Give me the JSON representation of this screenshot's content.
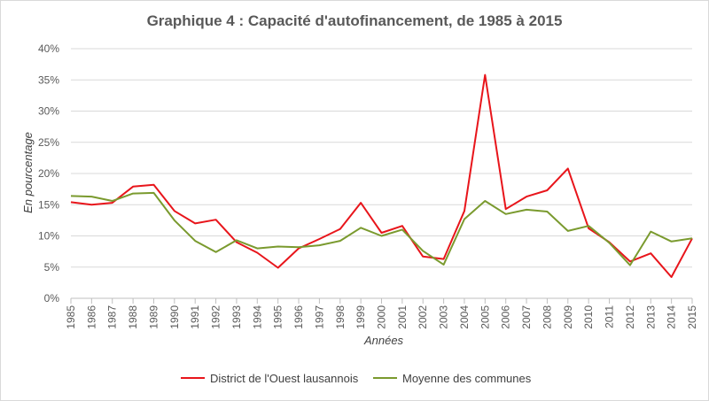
{
  "chart_data": {
    "type": "line",
    "title": "Graphique 4 : Capacité d'autofinancement, de 1985 à 2015",
    "xlabel": "Années",
    "ylabel": "En pourcentage",
    "ylim": [
      0,
      40
    ],
    "y_ticks": [
      "0%",
      "5%",
      "10%",
      "15%",
      "20%",
      "25%",
      "30%",
      "35%",
      "40%"
    ],
    "y_tick_values": [
      0,
      5,
      10,
      15,
      20,
      25,
      30,
      35,
      40
    ],
    "grid": "horizontal",
    "legend_position": "bottom",
    "categories": [
      "1985",
      "1986",
      "1987",
      "1988",
      "1989",
      "1990",
      "1991",
      "1992",
      "1993",
      "1994",
      "1995",
      "1996",
      "1997",
      "1998",
      "1999",
      "2000",
      "2001",
      "2002",
      "2003",
      "2004",
      "2005",
      "2006",
      "2007",
      "2008",
      "2009",
      "2010",
      "2011",
      "2012",
      "2013",
      "2014",
      "2015"
    ],
    "series": [
      {
        "name": "District de l'Ouest lausannois",
        "color": "#e8151b",
        "values": [
          15.4,
          15.0,
          15.3,
          17.9,
          18.2,
          14.0,
          12.0,
          12.6,
          9.0,
          7.3,
          4.9,
          8.0,
          9.5,
          11.1,
          15.3,
          10.5,
          11.6,
          6.7,
          6.3,
          14.0,
          35.8,
          14.3,
          16.3,
          17.3,
          20.8,
          11.2,
          9.0,
          5.9,
          7.2,
          3.4,
          9.6
        ]
      },
      {
        "name": "Moyenne des communes",
        "color": "#7a9a2e",
        "values": [
          16.4,
          16.3,
          15.6,
          16.8,
          16.9,
          12.5,
          9.2,
          7.4,
          9.3,
          8.0,
          8.3,
          8.2,
          8.5,
          9.2,
          11.3,
          10.0,
          11.0,
          7.6,
          5.4,
          12.7,
          15.6,
          13.5,
          14.2,
          13.9,
          10.8,
          11.6,
          8.9,
          5.3,
          10.7,
          9.1,
          9.6
        ]
      }
    ]
  }
}
